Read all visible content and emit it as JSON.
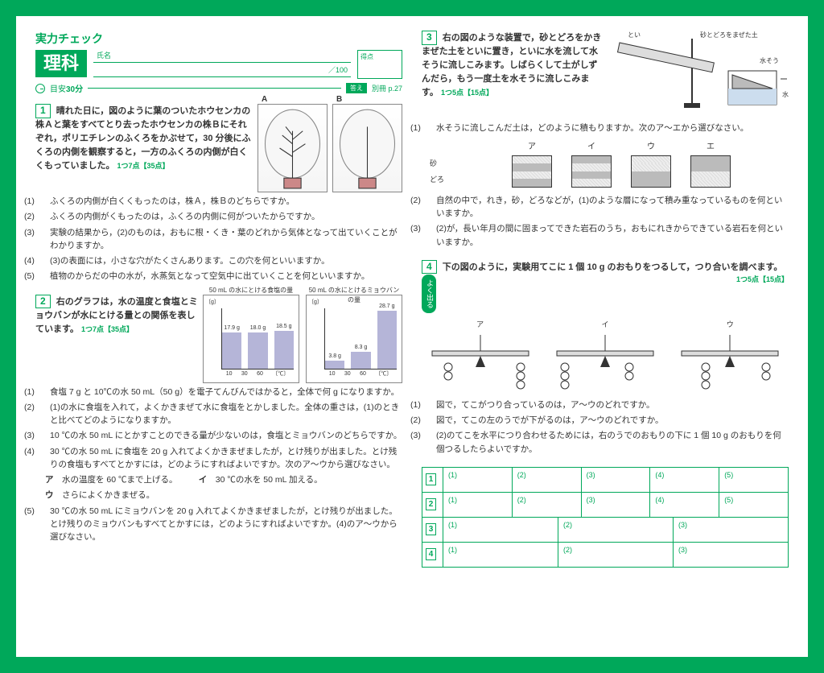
{
  "header": {
    "check_title": "実力チェック",
    "subject": "理科",
    "name_label": "氏名",
    "max_score": "／100",
    "score_label": "得点",
    "time_label": "目安",
    "time_value": "30分",
    "answer_btn": "答え",
    "answer_ref": "別冊 p.27"
  },
  "q1": {
    "num": "1",
    "head_a": "晴れた日に，図のように葉のついたホウセンカの株Ａと葉をすべてとり去ったホウセンカの株Ｂにそれぞれ，ポリエチレンのふくろをかぶせて，30 分後にふくろの内側を観察すると，一方のふくろの内側が白くくもっていました。",
    "points": "1つ7点【35点】",
    "plant_a": "A",
    "plant_b": "B",
    "s1": "ふくろの内側が白くくもったのは，株Ａ，株Ｂのどちらですか。",
    "s2": "ふくろの内側がくもったのは，ふくろの内側に何がついたからですか。",
    "s3": "実験の結果から，(2)のものは，おもに根・くき・葉のどれから気体となって出ていくことがわかりますか。",
    "s4": "(3)の表面には，小さな穴がたくさんあります。この穴を何といいますか。",
    "s5": "植物のからだの中の水が，水蒸気となって空気中に出ていくことを何といいますか。"
  },
  "q2": {
    "num": "2",
    "head": "右のグラフは，水の温度と食塩とミョウバンが水にとける量との関係を表しています。",
    "points": "1つ7点【35点】",
    "chart1_title": "50 mL の水にとける食塩の量",
    "chart2_title": "50 mL の水にとけるミョウバンの量",
    "ylabel": "〔g〕",
    "salt_vals": [
      "17.9 g",
      "18.0 g",
      "18.5 g"
    ],
    "alum_vals": [
      "3.8 g",
      "8.3 g",
      "28.7 g"
    ],
    "salt_heights": [
      60,
      60,
      62
    ],
    "alum_heights": [
      13,
      28,
      96
    ],
    "xticks": [
      "10",
      "30",
      "60"
    ],
    "xunit": "〔℃〕",
    "s1": "食塩 7 g と 10℃の水 50 mL（50 g）を電子てんびんではかると，全体で何 g になりますか。",
    "s2": "(1)の水に食塩を入れて，よくかきまぜて水に食塩をとかしました。全体の重さは，(1)のときと比べてどのようになりますか。",
    "s3": "10 ℃の水 50 mL にとかすことのできる量が少ないのは，食塩とミョウバンのどちらですか。",
    "s4": "30 ℃の水 50 mL に食塩を 20 g 入れてよくかきまぜましたが，とけ残りが出ました。とけ残りの食塩もすべてとかすには，どのようにすればよいですか。次のア〜ウから選びなさい。",
    "s4a": "水の温度を 60 ℃まで上げる。",
    "s4b": "30 ℃の水を 50 mL 加える。",
    "s4c": "さらによくかきまぜる。",
    "s5": "30 ℃の水 50 mL にミョウバンを 20 g 入れてよくかきまぜましたが，とけ残りが出ました。とけ残りのミョウバンもすべてとかすには，どのようにすればよいですか。(4)のア〜ウから選びなさい。"
  },
  "q3": {
    "num": "3",
    "head": "右の図のような装置で，砂とどろをかきまぜた土をといに置き，といに水を流して水そうに流しこみます。しばらくして土がしずんだら，もう一度土を水そうに流しこみます。",
    "points": "1つ5点【15点】",
    "labels": {
      "toi": "とい",
      "mix": "砂とどろをまぜた土",
      "tank": "水そう",
      "water": "水"
    },
    "s1": "水そうに流しこんだ土は，どのように積もりますか。次のア〜エから選びなさい。",
    "choices": [
      "ア",
      "イ",
      "ウ",
      "エ"
    ],
    "side_labels": [
      "砂",
      "どろ"
    ],
    "s2": "自然の中で，れき，砂，どろなどが，(1)のような層になって積み重なっているものを何といいますか。",
    "s3": "(2)が，長い年月の間に固まってできた岩石のうち，おもにれきからできている岩石を何といいますか。"
  },
  "q4": {
    "num": "4",
    "head": "下の図のように，実験用てこに 1 個 10 g のおもりをつるして，つり合いを調べます。",
    "points": "1つ5点【15点】",
    "badge": "よく出る",
    "labels": [
      "ア",
      "イ",
      "ウ"
    ],
    "s1": "図で，てこがつり合っているのは，ア〜ウのどれですか。",
    "s2": "図で，てこの左のうでが下がるのは，ア〜ウのどれですか。",
    "s3": "(2)のてこを水平につり合わせるためには，右のうでのおもりの下に 1 個 10 g のおもりを何個つるしたらよいですか。"
  },
  "grid": {
    "rows": [
      {
        "q": "1",
        "cells": [
          "(1)",
          "(2)",
          "(3)",
          "(4)",
          "(5)"
        ]
      },
      {
        "q": "2",
        "cells": [
          "(1)",
          "(2)",
          "(3)",
          "(4)",
          "(5)"
        ]
      },
      {
        "q": "3",
        "cells": [
          "(1)",
          "(2)",
          "(3)"
        ]
      },
      {
        "q": "4",
        "cells": [
          "(1)",
          "(2)",
          "(3)"
        ]
      }
    ]
  }
}
